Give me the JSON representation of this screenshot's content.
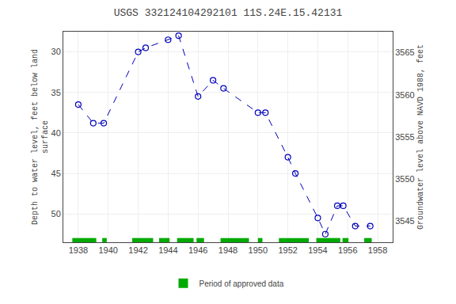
{
  "chart_data": {
    "type": "line",
    "title": "USGS 332124104292101 11S.24E.15.42131",
    "ylabel": "Depth to water level, feet below land\nsurface",
    "y2label": "Groundwater level above NAVD 1988, feet",
    "x": [
      1938.0,
      1939.0,
      1939.7,
      1942.0,
      1942.5,
      1944.0,
      1944.7,
      1946.0,
      1947.0,
      1947.7,
      1950.0,
      1950.5,
      1952.0,
      1952.5,
      1954.0,
      1954.5,
      1955.3,
      1955.7,
      1956.5,
      1957.5
    ],
    "series": [
      {
        "color": "#0000bb",
        "marker": "circle-open",
        "line_style": "dash",
        "values": [
          36.5,
          38.8,
          38.8,
          30.0,
          29.5,
          28.5,
          28.0,
          35.5,
          33.5,
          34.5,
          37.5,
          37.5,
          43.0,
          45.0,
          50.5,
          52.5,
          49.0,
          49.0,
          51.5,
          51.5
        ]
      }
    ],
    "periods": {
      "name": "Period of approved data",
      "color": "#00aa00",
      "ranges": [
        [
          1937.6,
          1939.2
        ],
        [
          1939.6,
          1939.9
        ],
        [
          1941.6,
          1943.0
        ],
        [
          1943.4,
          1944.1
        ],
        [
          1944.6,
          1945.7
        ],
        [
          1945.9,
          1946.4
        ],
        [
          1947.5,
          1949.4
        ],
        [
          1950.0,
          1950.3
        ],
        [
          1951.4,
          1953.4
        ],
        [
          1953.9,
          1955.5
        ],
        [
          1955.65,
          1956.05
        ],
        [
          1957.1,
          1957.6
        ]
      ]
    },
    "xlim": [
      1937.0,
      1959.0
    ],
    "xticks": [
      1938,
      1940,
      1942,
      1944,
      1946,
      1948,
      1950,
      1952,
      1954,
      1956,
      1958
    ],
    "ylim": [
      53.5,
      27.5
    ],
    "yticks": [
      30,
      35,
      40,
      45,
      50
    ],
    "y2lim": [
      3542.5,
      3567.5
    ],
    "y2ticks": [
      3545,
      3550,
      3555,
      3560,
      3565
    ],
    "grid": true
  }
}
